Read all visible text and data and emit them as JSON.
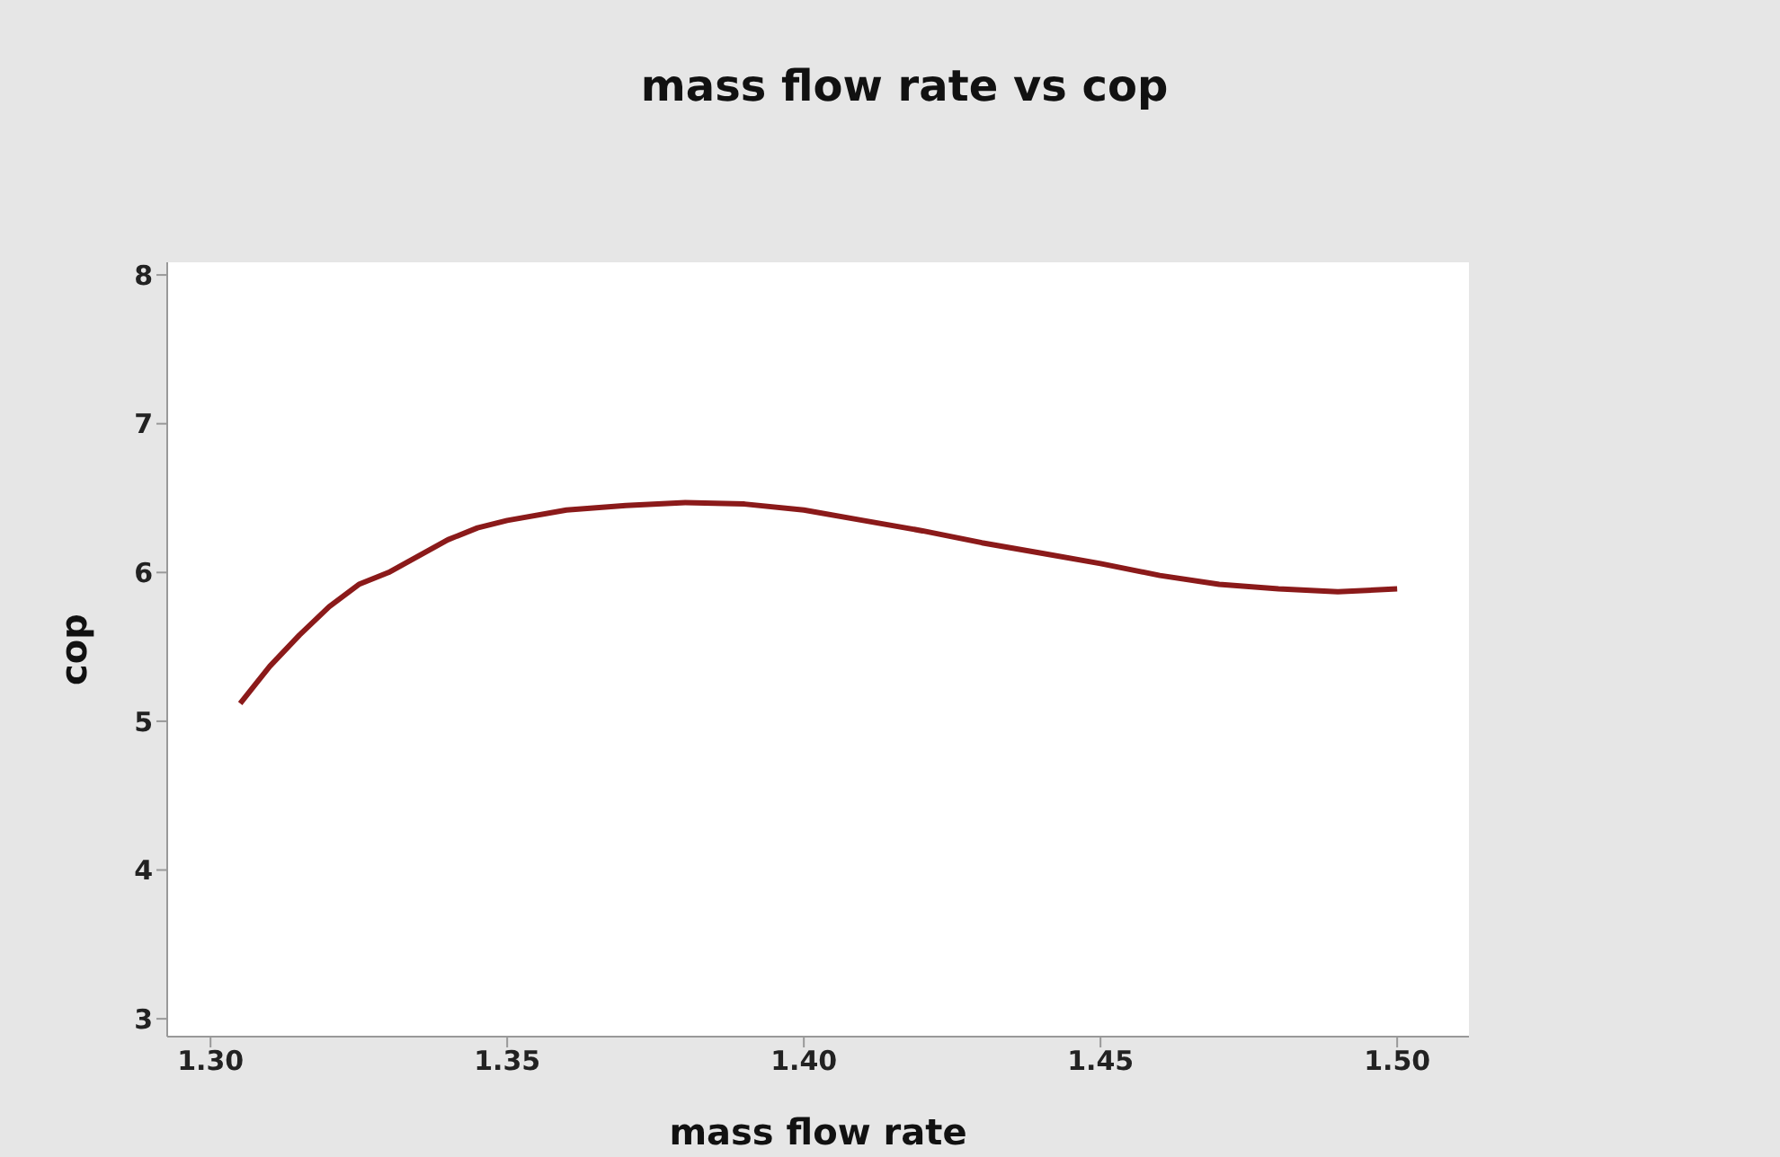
{
  "chart_data": {
    "type": "line",
    "title": "mass flow rate vs cop",
    "xlabel": "mass flow rate",
    "ylabel": "cop",
    "x": [
      1.305,
      1.31,
      1.315,
      1.32,
      1.325,
      1.33,
      1.34,
      1.345,
      1.35,
      1.36,
      1.37,
      1.38,
      1.39,
      1.4,
      1.41,
      1.42,
      1.43,
      1.44,
      1.45,
      1.46,
      1.47,
      1.48,
      1.49,
      1.5
    ],
    "series": [
      {
        "color": "#8b1a1a",
        "values": [
          5.12,
          5.37,
          5.58,
          5.77,
          5.92,
          6.0,
          6.22,
          6.3,
          6.35,
          6.42,
          6.45,
          6.47,
          6.46,
          6.42,
          6.35,
          6.28,
          6.2,
          6.13,
          6.06,
          5.98,
          5.92,
          5.89,
          5.87,
          5.89
        ]
      }
    ],
    "xlim": [
      1.2927,
      1.5121
    ],
    "xticks": [
      {
        "value": 1.3,
        "label": "1.30"
      },
      {
        "value": 1.35,
        "label": "1.35"
      },
      {
        "value": 1.4,
        "label": "1.40"
      },
      {
        "value": 1.45,
        "label": "1.45"
      },
      {
        "value": 1.5,
        "label": "1.50"
      }
    ],
    "ylim": [
      2.88,
      8.085
    ],
    "yticks": [
      3,
      4,
      5,
      6,
      7,
      8
    ],
    "grid": false,
    "legend": false,
    "marker": "none",
    "line_style": "solid"
  }
}
